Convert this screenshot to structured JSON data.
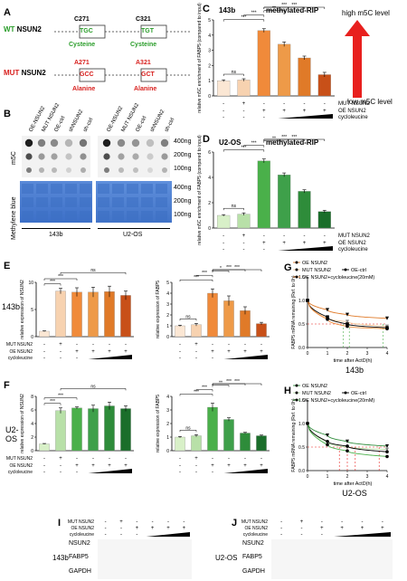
{
  "panel_letters": {
    "A": "A",
    "B": "B",
    "C": "C",
    "D": "D",
    "E": "E",
    "F": "F",
    "G": "G",
    "H": "H",
    "I": "I",
    "J": "J"
  },
  "panelA": {
    "wt_prefix": "WT",
    "wt_gene": "NSUN2",
    "mut_prefix": "MUT",
    "mut_gene": "NSUN2",
    "wt_sites": [
      {
        "pos": "C271",
        "codon": "TGC",
        "aa": "Cysteine"
      },
      {
        "pos": "C321",
        "codon": "TGT",
        "aa": "Cysteine"
      }
    ],
    "mut_sites": [
      {
        "pos": "A271",
        "codon": "GCC",
        "aa": "Alanine"
      },
      {
        "pos": "A321",
        "codon": "GCT",
        "aa": "Alanine"
      }
    ]
  },
  "panelB": {
    "cols": [
      "OE-NSUN2",
      "MUT NSUN2",
      "OE-ctrl",
      "shNSUN2",
      "sh-ctrl",
      "OE-NSUN2",
      "MUT NSUN2",
      "OE-ctrl",
      "shNSUN2",
      "sh-ctrl"
    ],
    "row_label_top": "m5C",
    "row_label_bottom": "Methylene blue",
    "amounts": [
      "400ng",
      "200ng",
      "100ng"
    ],
    "cells": [
      "143b",
      "U2-OS"
    ]
  },
  "arrow": {
    "high": "high m5C level",
    "low": "low m5C level"
  },
  "colors": {
    "c_light": "#f5c89a",
    "c_mid": "#f08a3a",
    "c_dark": "#c85018",
    "g_light": "#b8e0a8",
    "g_mid": "#4ab04a",
    "g_dark": "#1a6e2a",
    "arrow": "#e8201e",
    "blue_membrane": "#5a8ad8"
  },
  "legend_rows": {
    "mut": "MUT NSUN2",
    "oe": "OE NSUN2",
    "cyc": "cycloleucine"
  },
  "line_legend": {
    "oe": "OE NSUN2",
    "mut": "MUT NSUN2",
    "ctrl": "OE-ctrl",
    "cyc": "OE NSUN2+cycloleucine(20mM)"
  },
  "blots": {
    "bands": [
      "NSUN2",
      "FABP5",
      "GAPDH"
    ]
  },
  "chart_data": [
    {
      "id": "C",
      "type": "bar",
      "title": "methylated-RIP",
      "cell": "143b",
      "ylabel": "relative m5C enrichment of FABP5 (compared to input)",
      "ylim": [
        0,
        5
      ],
      "yticks": [
        "0",
        "1",
        "2",
        "3",
        "4",
        "5"
      ],
      "values": [
        1.0,
        1.05,
        4.3,
        3.4,
        2.5,
        1.4
      ],
      "errors": [
        0.06,
        0.08,
        0.12,
        0.15,
        0.12,
        0.15
      ],
      "sig": [
        {
          "a": 0,
          "b": 1,
          "t": "ns"
        },
        {
          "a": 0,
          "b": 2,
          "t": "***"
        },
        {
          "a": 1,
          "b": 2,
          "t": "***"
        },
        {
          "a": 2,
          "b": 3,
          "t": "**"
        },
        {
          "a": 2,
          "b": 4,
          "t": "***"
        },
        {
          "a": 2,
          "b": 5,
          "t": "***"
        }
      ],
      "rows": {
        "mut": [
          "-",
          "+",
          "-",
          "-",
          "-",
          "-"
        ],
        "oe": [
          "-",
          "-",
          "+",
          "+",
          "+",
          "+"
        ]
      }
    },
    {
      "id": "D",
      "type": "bar",
      "title": "methylated-RIP",
      "cell": "U2-OS",
      "ylabel": "relative m5C enrichment of FABP5 (compared to input)",
      "ylim": [
        0,
        6
      ],
      "yticks": [
        "0",
        "2",
        "4",
        "6"
      ],
      "values": [
        1.0,
        1.1,
        5.3,
        4.2,
        2.9,
        1.3
      ],
      "errors": [
        0.06,
        0.1,
        0.15,
        0.15,
        0.12,
        0.1
      ],
      "sig": [
        {
          "a": 0,
          "b": 1,
          "t": "ns"
        },
        {
          "a": 0,
          "b": 2,
          "t": "***"
        },
        {
          "a": 1,
          "b": 2,
          "t": "***"
        },
        {
          "a": 2,
          "b": 3,
          "t": "**"
        },
        {
          "a": 2,
          "b": 4,
          "t": "***"
        },
        {
          "a": 2,
          "b": 5,
          "t": "***"
        }
      ],
      "rows": {
        "mut": [
          "-",
          "+",
          "-",
          "-",
          "-",
          "-"
        ],
        "oe": [
          "-",
          "-",
          "+",
          "+",
          "+",
          "+"
        ]
      }
    },
    {
      "id": "E1",
      "type": "bar",
      "cell": "143b",
      "ylabel": "relative expression of NSUN2",
      "ylim": [
        0,
        10
      ],
      "yticks": [
        "0",
        "5",
        "10"
      ],
      "values": [
        1.0,
        8.4,
        8.2,
        8.2,
        8.3,
        7.6
      ],
      "errors": [
        0.08,
        0.5,
        0.8,
        0.9,
        1.0,
        0.8
      ],
      "sig": [
        {
          "a": 0,
          "b": 1,
          "t": "***"
        },
        {
          "a": 0,
          "b": 2,
          "t": "***"
        },
        {
          "a": 1,
          "b": 5,
          "t": "ns"
        }
      ],
      "rows": {
        "mut": [
          "-",
          "+",
          "-",
          "-",
          "-",
          "-"
        ],
        "oe": [
          "-",
          "-",
          "+",
          "+",
          "+",
          "+"
        ]
      }
    },
    {
      "id": "E2",
      "type": "bar",
      "cell": "143b",
      "ylabel": "relative expression of FABP5",
      "ylim": [
        0,
        5
      ],
      "yticks": [
        "0",
        "1",
        "2",
        "3",
        "4",
        "5"
      ],
      "values": [
        1.0,
        1.1,
        4.0,
        3.3,
        2.4,
        1.2
      ],
      "errors": [
        0.06,
        0.12,
        0.4,
        0.45,
        0.35,
        0.12
      ],
      "sig": [
        {
          "a": 0,
          "b": 1,
          "t": "ns"
        },
        {
          "a": 0,
          "b": 2,
          "t": "***"
        },
        {
          "a": 1,
          "b": 2,
          "t": "***"
        },
        {
          "a": 2,
          "b": 3,
          "t": "*"
        },
        {
          "a": 2,
          "b": 4,
          "t": "***"
        },
        {
          "a": 2,
          "b": 5,
          "t": "***"
        }
      ],
      "rows": {
        "mut": [
          "-",
          "+",
          "-",
          "-",
          "-",
          "-"
        ],
        "oe": [
          "-",
          "-",
          "+",
          "+",
          "+",
          "+"
        ]
      }
    },
    {
      "id": "F1",
      "type": "bar",
      "cell": "U2-OS",
      "ylabel": "relative expression of NSUN2",
      "ylim": [
        0,
        8
      ],
      "yticks": [
        "0",
        "2",
        "4",
        "6",
        "8"
      ],
      "values": [
        1.0,
        5.9,
        6.3,
        6.2,
        6.6,
        6.2
      ],
      "errors": [
        0.06,
        0.4,
        0.15,
        0.5,
        0.55,
        0.4
      ],
      "sig": [
        {
          "a": 0,
          "b": 1,
          "t": "***"
        },
        {
          "a": 0,
          "b": 2,
          "t": "***"
        },
        {
          "a": 1,
          "b": 5,
          "t": "ns"
        }
      ],
      "rows": {
        "mut": [
          "-",
          "+",
          "-",
          "-",
          "-",
          "-"
        ],
        "oe": [
          "-",
          "-",
          "+",
          "+",
          "+",
          "+"
        ]
      }
    },
    {
      "id": "F2",
      "type": "bar",
      "cell": "U2-OS",
      "ylabel": "relative expression of FABP5",
      "ylim": [
        0,
        4
      ],
      "yticks": [
        "0",
        "1",
        "2",
        "3",
        "4"
      ],
      "values": [
        1.0,
        1.1,
        3.2,
        2.3,
        1.3,
        1.1
      ],
      "errors": [
        0.05,
        0.08,
        0.3,
        0.12,
        0.05,
        0.05
      ],
      "sig": [
        {
          "a": 0,
          "b": 1,
          "t": "ns"
        },
        {
          "a": 0,
          "b": 2,
          "t": "***"
        },
        {
          "a": 1,
          "b": 2,
          "t": "***"
        },
        {
          "a": 2,
          "b": 3,
          "t": "**"
        },
        {
          "a": 2,
          "b": 4,
          "t": "***"
        },
        {
          "a": 2,
          "b": 5,
          "t": "***"
        }
      ],
      "rows": {
        "mut": [
          "-",
          "+",
          "-",
          "-",
          "-",
          "-"
        ],
        "oe": [
          "-",
          "-",
          "+",
          "+",
          "+",
          "+"
        ]
      }
    },
    {
      "id": "G",
      "type": "line",
      "cell": "143b",
      "ylabel": "FABP5 mRNA remaining (Ref. to 0h)",
      "xlabel": "time after ActD(h)",
      "xlim": [
        0,
        4
      ],
      "ylim": [
        0,
        1.5
      ],
      "xticks": [
        "0",
        "1",
        "2",
        "3",
        "4"
      ],
      "yticks": [
        "0.0",
        "0.5",
        "1.0",
        "1.5"
      ],
      "series": [
        {
          "name": "OE NSUN2",
          "x": [
            0,
            1,
            2,
            4
          ],
          "y": [
            1.0,
            0.8,
            0.7,
            0.62
          ]
        },
        {
          "name": "MUT NSUN2",
          "x": [
            0,
            1,
            2,
            4
          ],
          "y": [
            1.0,
            0.62,
            0.55,
            0.45
          ]
        },
        {
          "name": "OE-ctrl",
          "x": [
            0,
            1,
            2,
            4
          ],
          "y": [
            1.0,
            0.65,
            0.5,
            0.42
          ]
        },
        {
          "name": "OE NSUN2+cycloleucine(20mM)",
          "x": [
            0,
            1,
            2,
            4
          ],
          "y": [
            1.0,
            0.6,
            0.45,
            0.4
          ]
        }
      ],
      "halflife_x": [
        1.8,
        2.1,
        3.8
      ]
    },
    {
      "id": "H",
      "type": "line",
      "cell": "U2-OS",
      "ylabel": "FABP5 mRNA remaining (Ref. to 0h)",
      "xlabel": "time after ActD(h)",
      "xlim": [
        0,
        4
      ],
      "ylim": [
        0,
        1.5
      ],
      "xticks": [
        "0",
        "1",
        "2",
        "3",
        "4"
      ],
      "yticks": [
        "0.0",
        "0.5",
        "1.0",
        "1.5"
      ],
      "series": [
        {
          "name": "OE NSUN2",
          "x": [
            0,
            1,
            2,
            4
          ],
          "y": [
            1.0,
            0.75,
            0.62,
            0.52
          ]
        },
        {
          "name": "MUT NSUN2",
          "x": [
            0,
            1,
            2,
            4
          ],
          "y": [
            1.0,
            0.6,
            0.5,
            0.45
          ]
        },
        {
          "name": "OE-ctrl",
          "x": [
            0,
            1,
            2,
            4
          ],
          "y": [
            1.0,
            0.62,
            0.52,
            0.4
          ]
        },
        {
          "name": "OE NSUN2+cycloleucine(20mM)",
          "x": [
            0,
            1,
            2,
            4
          ],
          "y": [
            1.0,
            0.55,
            0.42,
            0.3
          ]
        }
      ],
      "halflife_x": [
        1.6,
        2.0,
        2.4,
        3.6
      ]
    }
  ]
}
